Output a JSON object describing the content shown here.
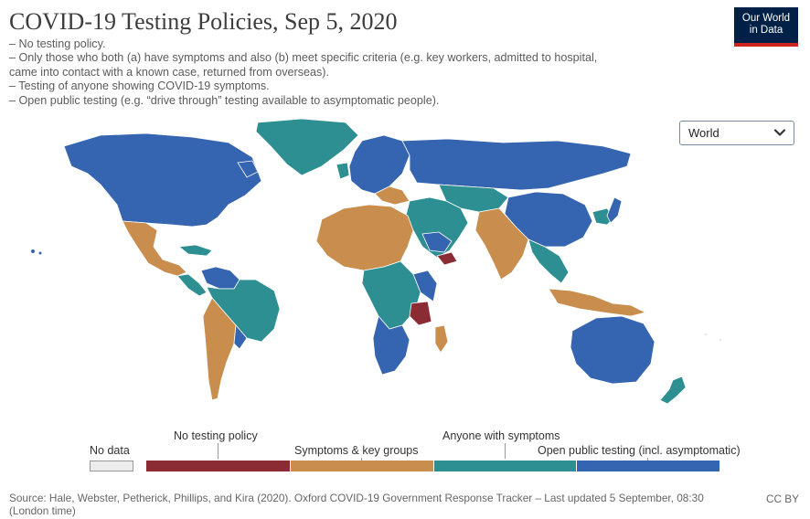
{
  "title": "COVID-19 Testing Policies, Sep 5, 2020",
  "subtitle_lines": [
    "– No testing policy.",
    "– Only those who both (a) have symptoms and also (b) meet specific criteria (e.g. key workers, admitted to hospital,",
    "came into contact with a known case, returned from overseas).",
    "– Testing of anyone showing COVID-19 symptoms.",
    "– Open public testing (e.g. “drive through” testing available to asymptomatic people)."
  ],
  "logo": {
    "line1": "Our World",
    "line2": "in Data"
  },
  "region_select": {
    "value": "World",
    "icon": "chevron-down-icon"
  },
  "legend": {
    "no_data": "No data",
    "categories": [
      {
        "label": "No testing policy",
        "color": "#8b2b33"
      },
      {
        "label": "Symptoms & key groups",
        "color": "#c98d4d"
      },
      {
        "label": "Anyone with symptoms",
        "color": "#2d8f91"
      },
      {
        "label": "Open public testing (incl. asymptomatic)",
        "color": "#3565b0"
      }
    ],
    "no_data_color": "#ececec"
  },
  "source": "Source: Hale, Webster, Petherick, Phillips, and Kira (2020). Oxford COVID-19 Government Response Tracker – Last updated 5 September, 08:30 (London time)",
  "license": "CC BY"
}
